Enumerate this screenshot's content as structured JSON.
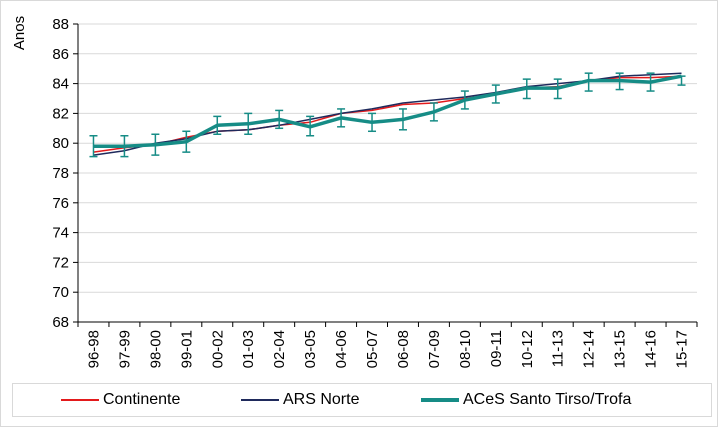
{
  "chart_data": {
    "type": "line",
    "ylabel": "Anos",
    "xlabel": "",
    "ylim": [
      68,
      88
    ],
    "yticks": [
      "68",
      "70",
      "72",
      "74",
      "76",
      "78",
      "80",
      "82",
      "84",
      "86",
      "88"
    ],
    "categories": [
      "96-98",
      "97-99",
      "98-00",
      "99-01",
      "00-02",
      "01-03",
      "02-04",
      "03-05",
      "04-06",
      "05-07",
      "06-08",
      "07-09",
      "08-10",
      "09-11",
      "10-12",
      "11-13",
      "12-14",
      "13-15",
      "14-16",
      "15-17"
    ],
    "grid": "horizontal",
    "legend_position": "bottom",
    "series": [
      {
        "name": "Continente",
        "color": "#e31a1c",
        "values": [
          79.4,
          79.7,
          79.9,
          80.4,
          80.8,
          80.9,
          81.2,
          81.4,
          82.0,
          82.2,
          82.6,
          82.7,
          83.0,
          83.3,
          83.7,
          83.8,
          84.2,
          84.4,
          84.4,
          84.5
        ]
      },
      {
        "name": "ARS Norte",
        "color": "#1f2a5c",
        "values": [
          79.2,
          79.5,
          80.0,
          80.3,
          80.8,
          80.9,
          81.2,
          81.6,
          82.0,
          82.3,
          82.7,
          82.9,
          83.1,
          83.4,
          83.8,
          84.0,
          84.2,
          84.5,
          84.6,
          84.7
        ]
      },
      {
        "name": "ACeS Santo Tirso/Trofa",
        "color": "#168c86",
        "values": [
          79.8,
          79.8,
          79.9,
          80.1,
          81.2,
          81.3,
          81.6,
          81.1,
          81.7,
          81.4,
          81.6,
          82.1,
          82.9,
          83.3,
          83.7,
          83.7,
          84.2,
          84.2,
          84.1,
          84.5
        ],
        "error_lower": [
          79.1,
          79.1,
          79.2,
          79.4,
          80.6,
          80.6,
          81.0,
          80.5,
          81.1,
          80.8,
          80.9,
          81.5,
          82.3,
          82.7,
          83.0,
          83.0,
          83.5,
          83.6,
          83.5,
          83.9
        ],
        "error_upper": [
          80.5,
          80.5,
          80.6,
          80.8,
          81.8,
          82.0,
          82.2,
          81.8,
          82.3,
          82.0,
          82.3,
          82.7,
          83.5,
          83.9,
          84.3,
          84.3,
          84.7,
          84.7,
          84.7,
          84.5
        ]
      }
    ]
  }
}
